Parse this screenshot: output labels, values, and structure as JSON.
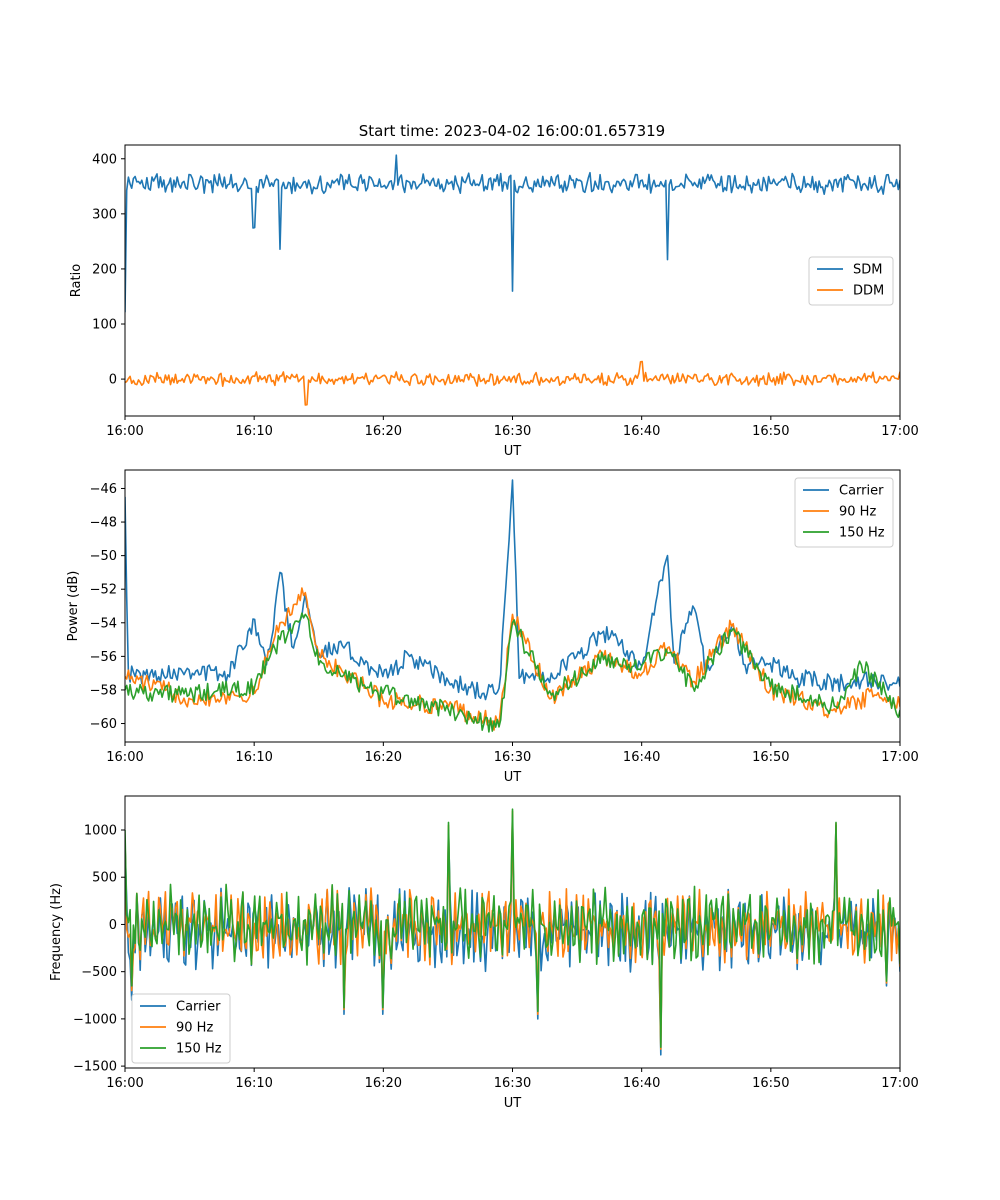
{
  "figure": {
    "title": "Start time: 2023-04-02 16:00:01.657319"
  },
  "chart_data": [
    {
      "type": "line",
      "xlabel": "UT",
      "ylabel": "Ratio",
      "xlim": [
        "16:00",
        "17:00"
      ],
      "x_ticks": [
        "16:00",
        "16:10",
        "16:20",
        "16:30",
        "16:40",
        "16:50",
        "17:00"
      ],
      "ylim": [
        -67,
        425
      ],
      "y_ticks": [
        0,
        100,
        200,
        300,
        400
      ],
      "grid": false,
      "legend": {
        "position": "center-right"
      },
      "series": [
        {
          "name": "SDM",
          "color": "#1f77b4",
          "baseline": 355,
          "noise": 14,
          "x": [
            "16:00",
            "16:00:30",
            "16:01",
            "16:05",
            "16:10",
            "16:10:30",
            "16:12",
            "16:12:30",
            "16:20",
            "16:21",
            "16:30",
            "16:30:30",
            "16:40",
            "16:42",
            "16:42:30",
            "16:50",
            "16:59",
            "17:00"
          ],
          "values": [
            120,
            345,
            360,
            370,
            275,
            360,
            235,
            345,
            350,
            405,
            160,
            350,
            360,
            215,
            345,
            355,
            370,
            360
          ]
        },
        {
          "name": "DDM",
          "color": "#ff7f0e",
          "baseline": 0,
          "noise": 9,
          "x": [
            "16:00",
            "16:10",
            "16:14",
            "16:20",
            "16:30",
            "16:40",
            "16:50",
            "17:00"
          ],
          "values": [
            -5,
            5,
            -45,
            8,
            2,
            30,
            -3,
            15
          ]
        }
      ]
    },
    {
      "type": "line",
      "xlabel": "UT",
      "ylabel": "Power (dB)",
      "xlim": [
        "16:00",
        "17:00"
      ],
      "x_ticks": [
        "16:00",
        "16:10",
        "16:20",
        "16:30",
        "16:40",
        "16:50",
        "17:00"
      ],
      "ylim": [
        -61.1,
        -44.9
      ],
      "y_ticks": [
        -60,
        -58,
        -56,
        -54,
        -52,
        -50,
        -48,
        -46
      ],
      "grid": false,
      "legend": {
        "position": "top-right"
      },
      "series": [
        {
          "name": "Carrier",
          "color": "#1f77b4",
          "x": [
            "16:00",
            "16:00:15",
            "16:00:45",
            "16:02",
            "16:05",
            "16:08",
            "16:10",
            "16:11",
            "16:12",
            "16:13",
            "16:14",
            "16:15",
            "16:17",
            "16:20",
            "16:22",
            "16:25",
            "16:28",
            "16:29",
            "16:30",
            "16:30:30",
            "16:33",
            "16:35",
            "16:37",
            "16:40",
            "16:42",
            "16:42:30",
            "16:44",
            "16:45",
            "16:47",
            "16:48",
            "16:50",
            "16:52",
            "16:55",
            "16:58",
            "17:00"
          ],
          "values": [
            -46.5,
            -57.0,
            -57.2,
            -57.0,
            -56.8,
            -57.1,
            -53.8,
            -56.5,
            -51.0,
            -55.5,
            -52.3,
            -55.8,
            -55.5,
            -57.2,
            -56.0,
            -57.5,
            -58.2,
            -57.9,
            -45.5,
            -57.3,
            -57.0,
            -56.0,
            -54.5,
            -56.5,
            -50.0,
            -56.4,
            -53.0,
            -56.9,
            -54.2,
            -56.5,
            -56.4,
            -57.3,
            -57.6,
            -57.4,
            -57.8
          ]
        },
        {
          "name": "90 Hz",
          "color": "#ff7f0e",
          "x": [
            "16:00",
            "16:05",
            "16:10",
            "16:12",
            "16:14",
            "16:15",
            "16:20",
            "16:25",
            "16:29",
            "16:30",
            "16:33",
            "16:37",
            "16:40",
            "16:42",
            "16:44",
            "16:47",
            "16:50",
            "16:55",
            "16:58",
            "17:00"
          ],
          "values": [
            -57.2,
            -58.5,
            -58.2,
            -54.0,
            -52.2,
            -56.0,
            -58.6,
            -59.0,
            -60.0,
            -53.5,
            -58.5,
            -56.0,
            -57.0,
            -55.5,
            -57.5,
            -54.2,
            -58.0,
            -59.3,
            -58.3,
            -59.0
          ]
        },
        {
          "name": "150 Hz",
          "color": "#2ca02c",
          "x": [
            "16:00",
            "16:05",
            "16:10",
            "16:12",
            "16:14",
            "16:15",
            "16:20",
            "16:25",
            "16:29",
            "16:30",
            "16:33",
            "16:37",
            "16:40",
            "16:42",
            "16:44",
            "16:47",
            "16:50",
            "16:55",
            "16:57",
            "17:00"
          ],
          "values": [
            -58.0,
            -58.3,
            -57.8,
            -55.0,
            -53.5,
            -56.5,
            -58.2,
            -59.2,
            -60.2,
            -54.0,
            -58.3,
            -56.2,
            -56.5,
            -55.8,
            -57.8,
            -54.5,
            -57.8,
            -59.0,
            -56.5,
            -59.2
          ]
        }
      ]
    },
    {
      "type": "line",
      "xlabel": "UT",
      "ylabel": "Frequency (Hz)",
      "xlim": [
        "16:00",
        "17:00"
      ],
      "x_ticks": [
        "16:00",
        "16:10",
        "16:20",
        "16:30",
        "16:40",
        "16:50",
        "17:00"
      ],
      "ylim": [
        -1520,
        1360
      ],
      "y_ticks": [
        -1500,
        -1000,
        -500,
        0,
        500,
        1000
      ],
      "grid": false,
      "legend": {
        "position": "lower-left"
      },
      "series": [
        {
          "name": "Carrier",
          "color": "#1f77b4",
          "amplitude": 420,
          "x": [
            "16:00",
            "16:00:30",
            "16:17",
            "16:20",
            "16:25",
            "16:30",
            "16:32",
            "16:41:30",
            "16:55",
            "16:59",
            "17:00"
          ],
          "values": [
            850,
            -800,
            -950,
            -950,
            1000,
            1150,
            -1000,
            -1380,
            1050,
            -650,
            -500
          ]
        },
        {
          "name": "90 Hz",
          "color": "#ff7f0e",
          "amplitude": 400,
          "x": [
            "16:00",
            "16:00:30",
            "16:17",
            "16:20",
            "16:25",
            "16:30",
            "16:32",
            "16:41:30",
            "16:55",
            "16:59",
            "17:00"
          ],
          "values": [
            900,
            -700,
            -900,
            -900,
            1050,
            1200,
            -950,
            -1320,
            1070,
            -620,
            -450
          ]
        },
        {
          "name": "150 Hz",
          "color": "#2ca02c",
          "amplitude": 400,
          "x": [
            "16:00",
            "16:00:30",
            "16:17",
            "16:20",
            "16:25",
            "16:30",
            "16:32",
            "16:41:30",
            "16:55",
            "16:59",
            "17:00"
          ],
          "values": [
            1000,
            -650,
            -880,
            -880,
            1080,
            1220,
            -920,
            -1300,
            1080,
            -600,
            -420
          ]
        }
      ]
    }
  ]
}
